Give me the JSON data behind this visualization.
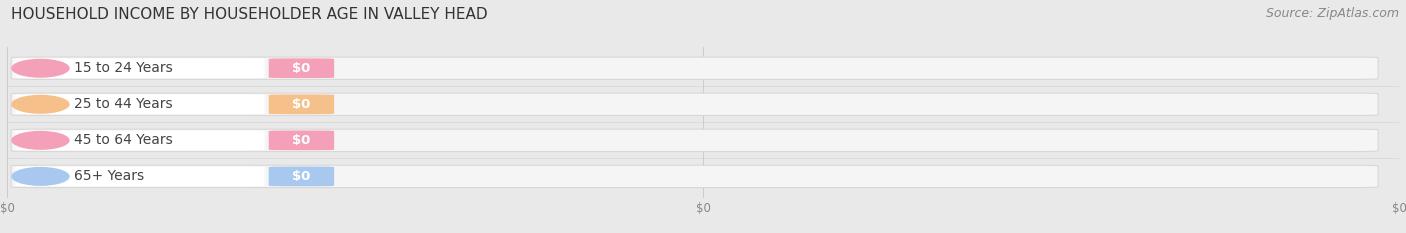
{
  "title": "HOUSEHOLD INCOME BY HOUSEHOLDER AGE IN VALLEY HEAD",
  "source": "Source: ZipAtlas.com",
  "categories": [
    "15 to 24 Years",
    "25 to 44 Years",
    "45 to 64 Years",
    "65+ Years"
  ],
  "values": [
    0,
    0,
    0,
    0
  ],
  "bar_colors": [
    "#f4a0b8",
    "#f5c08a",
    "#f4a0b8",
    "#a8c8f0"
  ],
  "background_color": "#e8e8e8",
  "bar_bg_color": "#f0f0f0",
  "title_fontsize": 11,
  "source_fontsize": 9,
  "label_fontsize": 10,
  "value_fontsize": 9.5
}
